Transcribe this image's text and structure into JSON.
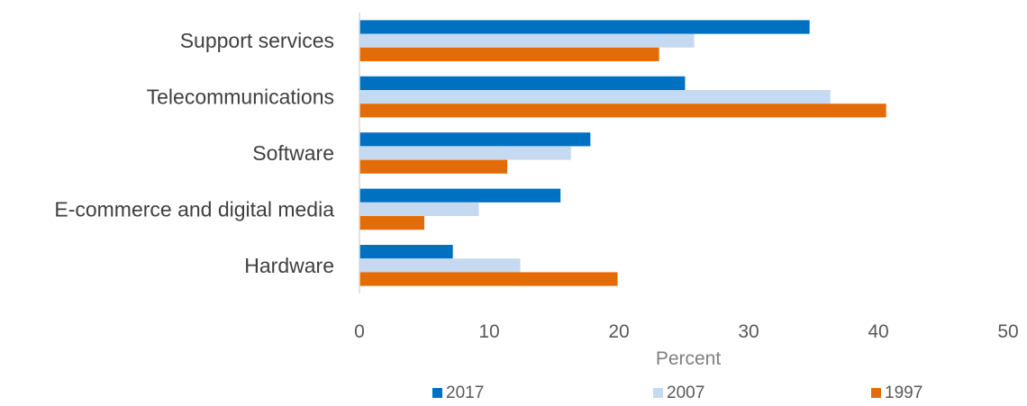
{
  "chart_data": {
    "type": "bar",
    "orientation": "horizontal",
    "categories": [
      "Support services",
      "Telecommunications",
      "Software",
      "E-commerce and digital media",
      "Hardware"
    ],
    "series": [
      {
        "name": "2017",
        "color": "#0070C0",
        "values": [
          34.7,
          25.1,
          17.8,
          15.5,
          7.2
        ]
      },
      {
        "name": "2007",
        "color": "#C5D9F1",
        "values": [
          25.8,
          36.3,
          16.3,
          9.2,
          12.4
        ]
      },
      {
        "name": "1997",
        "color": "#E36C09",
        "values": [
          23.1,
          40.6,
          11.4,
          5.0,
          19.9
        ]
      }
    ],
    "xlabel": "Percent",
    "xlim": [
      0,
      50
    ],
    "xticks": [
      0,
      10,
      20,
      30,
      40,
      50
    ],
    "grid": false,
    "legend_position": "bottom"
  }
}
